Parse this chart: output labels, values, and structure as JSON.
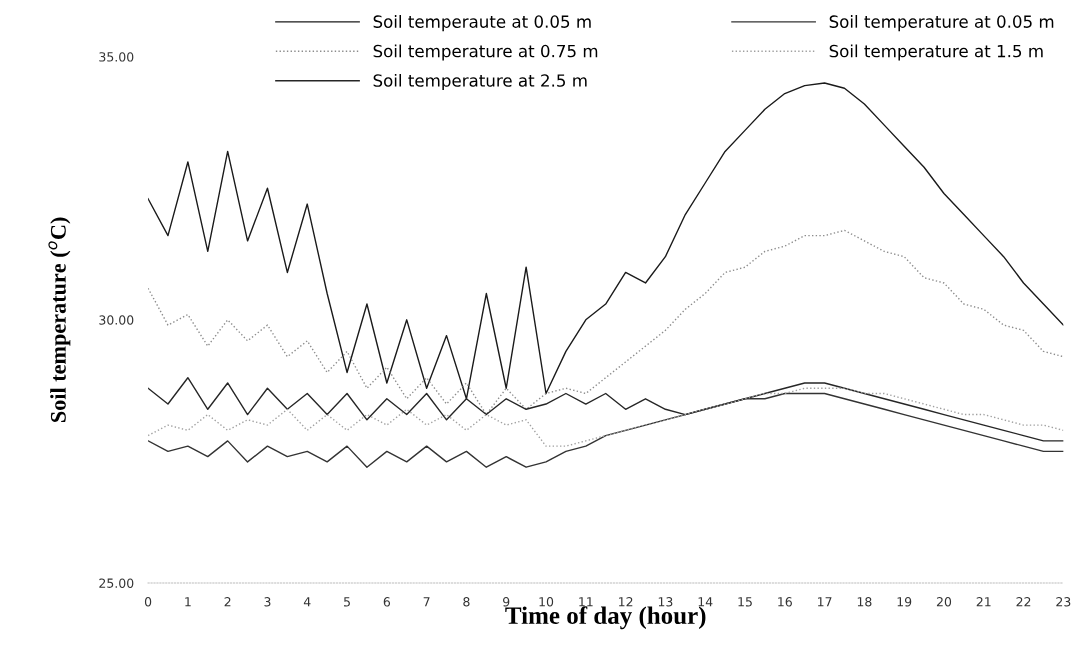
{
  "chart_data": {
    "type": "line",
    "xlabel": "Time of day (hour)",
    "ylabel": "Soil temperature ($^{o}$C)",
    "x": [
      0,
      0.5,
      1,
      1.5,
      2,
      2.5,
      3,
      3.5,
      4,
      4.5,
      5,
      5.5,
      6,
      6.5,
      7,
      7.5,
      8,
      8.5,
      9,
      9.5,
      10,
      10.5,
      11,
      11.5,
      12,
      12.5,
      13,
      13.5,
      14,
      14.5,
      15,
      15.5,
      16,
      16.5,
      17,
      17.5,
      18,
      18.5,
      19,
      19.5,
      20,
      20.5,
      21,
      21.5,
      22,
      22.5,
      23
    ],
    "series": [
      {
        "name": "Soil temperaute at 0.05 m",
        "color": "#1a1a1a",
        "line_style": "solid",
        "values": [
          32.3,
          31.6,
          33.0,
          31.3,
          33.2,
          31.5,
          32.5,
          30.9,
          32.2,
          30.5,
          29.0,
          30.3,
          28.8,
          30.0,
          28.7,
          29.7,
          28.5,
          30.5,
          28.7,
          31.0,
          28.6,
          29.4,
          30.0,
          30.3,
          30.9,
          30.7,
          31.2,
          32.0,
          32.6,
          33.2,
          33.6,
          34.0,
          34.3,
          34.45,
          34.5,
          34.4,
          34.1,
          33.7,
          33.3,
          32.9,
          32.4,
          32.0,
          31.6,
          31.2,
          30.7,
          30.3,
          29.9
        ]
      },
      {
        "name": "Soil temperature at 0.75 m",
        "color": "#8c8c8c",
        "line_style": "dotted",
        "values": [
          30.6,
          29.9,
          30.1,
          29.5,
          30.0,
          29.6,
          29.9,
          29.3,
          29.6,
          29.0,
          29.4,
          28.7,
          29.1,
          28.5,
          28.9,
          28.4,
          28.8,
          28.2,
          28.7,
          28.3,
          28.6,
          28.7,
          28.6,
          28.9,
          29.2,
          29.5,
          29.8,
          30.2,
          30.5,
          30.9,
          31.0,
          31.3,
          31.4,
          31.6,
          31.6,
          31.7,
          31.5,
          31.3,
          31.2,
          30.8,
          30.7,
          30.3,
          30.2,
          29.9,
          29.8,
          29.4,
          29.3
        ]
      },
      {
        "name": "Soil temperature at 2.5 m",
        "color": "#262626",
        "line_style": "solid",
        "values": [
          28.7,
          28.4,
          28.9,
          28.3,
          28.8,
          28.2,
          28.7,
          28.3,
          28.6,
          28.2,
          28.6,
          28.1,
          28.5,
          28.2,
          28.6,
          28.1,
          28.5,
          28.2,
          28.5,
          28.3,
          28.4,
          28.6,
          28.4,
          28.6,
          28.3,
          28.5,
          28.3,
          28.2,
          28.3,
          28.4,
          28.5,
          28.6,
          28.7,
          28.8,
          28.8,
          28.7,
          28.6,
          28.5,
          28.4,
          28.3,
          28.2,
          28.1,
          28.0,
          27.9,
          27.8,
          27.7,
          27.7
        ]
      },
      {
        "name": "Soil temperature at 0.05 m",
        "color": "#333333",
        "line_style": "solid",
        "values": [
          27.7,
          27.5,
          27.6,
          27.4,
          27.7,
          27.3,
          27.6,
          27.4,
          27.5,
          27.3,
          27.6,
          27.2,
          27.5,
          27.3,
          27.6,
          27.3,
          27.5,
          27.2,
          27.4,
          27.2,
          27.3,
          27.5,
          27.6,
          27.8,
          27.9,
          28.0,
          28.1,
          28.2,
          28.3,
          28.4,
          28.5,
          28.5,
          28.6,
          28.6,
          28.6,
          28.5,
          28.4,
          28.3,
          28.2,
          28.1,
          28.0,
          27.9,
          27.8,
          27.7,
          27.6,
          27.5,
          27.5
        ]
      },
      {
        "name": "Soil temperature at 1.5 m",
        "color": "#a0a0a0",
        "line_style": "dotted",
        "values": [
          27.8,
          28.0,
          27.9,
          28.2,
          27.9,
          28.1,
          28.0,
          28.3,
          27.9,
          28.2,
          27.9,
          28.2,
          28.0,
          28.3,
          28.0,
          28.2,
          27.9,
          28.2,
          28.0,
          28.1,
          27.6,
          27.6,
          27.7,
          27.8,
          27.9,
          28.0,
          28.1,
          28.2,
          28.3,
          28.4,
          28.5,
          28.6,
          28.6,
          28.7,
          28.7,
          28.7,
          28.6,
          28.6,
          28.5,
          28.4,
          28.3,
          28.2,
          28.2,
          28.1,
          28.0,
          28.0,
          27.9
        ]
      }
    ],
    "xlim": [
      0,
      23
    ],
    "xticks": [
      0,
      1,
      2,
      3,
      4,
      5,
      6,
      7,
      8,
      9,
      10,
      11,
      12,
      13,
      14,
      15,
      16,
      17,
      18,
      19,
      20,
      21,
      22,
      23
    ],
    "ylim": [
      25,
      35
    ],
    "yticks": [
      {
        "value": 25,
        "label": "25.00"
      },
      {
        "value": 30,
        "label": "30.00"
      },
      {
        "value": 35,
        "label": "35.00"
      }
    ],
    "grid": false,
    "legend": "top",
    "marker": "none"
  }
}
